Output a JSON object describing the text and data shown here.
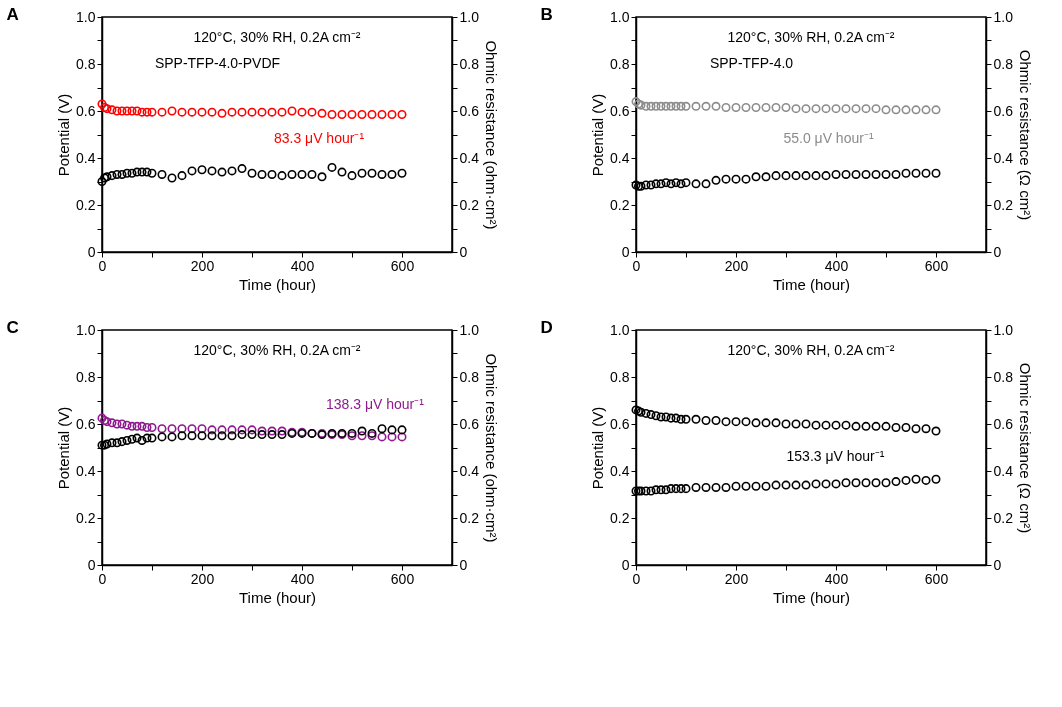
{
  "chart_data": [
    {
      "type": "scatter",
      "title": "A",
      "xlabel": "Time (hour)",
      "ylabel": "Potential (V)",
      "y2label": "Ohmic resistance (ohm·cm²)",
      "annotations": [
        "120°C, 30% RH, 0.2A cm⁻²",
        "SPP-TFP-4.0-PVDF",
        "83.3 μV hour⁻¹"
      ],
      "x": [
        0,
        5,
        10,
        20,
        30,
        40,
        50,
        60,
        70,
        80,
        90,
        100,
        120,
        140,
        160,
        180,
        200,
        220,
        240,
        260,
        280,
        300,
        320,
        340,
        360,
        380,
        400,
        420,
        440,
        460,
        480,
        500,
        520,
        540,
        560,
        580,
        600
      ],
      "series": [
        {
          "color": "#ff0000",
          "values": [
            0.63,
            0.615,
            0.61,
            0.605,
            0.6,
            0.6,
            0.6,
            0.6,
            0.6,
            0.595,
            0.595,
            0.595,
            0.595,
            0.6,
            0.595,
            0.595,
            0.595,
            0.595,
            0.59,
            0.595,
            0.595,
            0.595,
            0.595,
            0.595,
            0.595,
            0.6,
            0.595,
            0.595,
            0.59,
            0.585,
            0.585,
            0.585,
            0.585,
            0.585,
            0.585,
            0.585,
            0.585
          ]
        },
        {
          "color": "#000000",
          "axis": "y2",
          "values": [
            0.3,
            0.315,
            0.32,
            0.325,
            0.33,
            0.33,
            0.335,
            0.335,
            0.34,
            0.34,
            0.34,
            0.335,
            0.33,
            0.315,
            0.325,
            0.345,
            0.35,
            0.345,
            0.34,
            0.345,
            0.355,
            0.335,
            0.33,
            0.33,
            0.325,
            0.33,
            0.33,
            0.33,
            0.32,
            0.36,
            0.34,
            0.325,
            0.335,
            0.335,
            0.33,
            0.33,
            0.335
          ]
        }
      ],
      "xlim": [
        0,
        700
      ],
      "xticks": [
        0,
        {
          "value": 100,
          "label": null
        },
        200,
        {
          "value": 300,
          "label": null
        },
        400,
        {
          "value": 500,
          "label": null
        },
        600
      ],
      "ylim": [
        0,
        1
      ],
      "yticks": [
        0,
        {
          "value": 0.1,
          "label": null
        },
        0.2,
        {
          "value": 0.3,
          "label": null
        },
        0.4,
        {
          "value": 0.5,
          "label": null
        },
        0.6,
        {
          "value": 0.7,
          "label": null
        },
        0.8,
        {
          "value": 0.9,
          "label": null
        },
        {
          "value": 1,
          "label": "1.0"
        }
      ],
      "y2lim": [
        0,
        1
      ],
      "y2ticks": [
        0,
        {
          "value": 0.1,
          "label": null
        },
        0.2,
        {
          "value": 0.3,
          "label": null
        },
        0.4,
        {
          "value": 0.5,
          "label": null
        },
        0.6,
        {
          "value": 0.7,
          "label": null
        },
        0.8,
        {
          "value": 0.9,
          "label": null
        },
        {
          "value": 1,
          "label": "1.0"
        }
      ],
      "marker": "circle",
      "grid": false
    },
    {
      "type": "scatter",
      "title": "B",
      "xlabel": "Time (hour)",
      "ylabel": "Potential (V)",
      "y2label": "Ohmic resistance (Ω cm²)",
      "annotations": [
        "120°C, 30% RH, 0.2A cm⁻²",
        "SPP-TFP-4.0",
        "55.0 μV hour⁻¹"
      ],
      "x": [
        0,
        5,
        10,
        20,
        30,
        40,
        50,
        60,
        70,
        80,
        90,
        100,
        120,
        140,
        160,
        180,
        200,
        220,
        240,
        260,
        280,
        300,
        320,
        340,
        360,
        380,
        400,
        420,
        440,
        460,
        480,
        500,
        520,
        540,
        560,
        580,
        600
      ],
      "series": [
        {
          "color": "#8c8c8c",
          "values": [
            0.64,
            0.63,
            0.625,
            0.62,
            0.62,
            0.62,
            0.62,
            0.62,
            0.62,
            0.62,
            0.62,
            0.62,
            0.62,
            0.62,
            0.62,
            0.615,
            0.615,
            0.615,
            0.615,
            0.615,
            0.615,
            0.615,
            0.61,
            0.61,
            0.61,
            0.61,
            0.61,
            0.61,
            0.61,
            0.61,
            0.61,
            0.605,
            0.605,
            0.605,
            0.605,
            0.605,
            0.605
          ]
        },
        {
          "color": "#000000",
          "axis": "y2",
          "values": [
            0.285,
            0.28,
            0.28,
            0.285,
            0.285,
            0.29,
            0.29,
            0.295,
            0.29,
            0.295,
            0.29,
            0.295,
            0.29,
            0.29,
            0.305,
            0.31,
            0.31,
            0.31,
            0.32,
            0.32,
            0.325,
            0.325,
            0.325,
            0.325,
            0.325,
            0.325,
            0.33,
            0.33,
            0.33,
            0.33,
            0.33,
            0.33,
            0.33,
            0.335,
            0.335,
            0.335,
            0.335
          ]
        }
      ],
      "xlim": [
        0,
        700
      ],
      "xticks": [
        0,
        {
          "value": 100,
          "label": null
        },
        200,
        {
          "value": 300,
          "label": null
        },
        400,
        {
          "value": 500,
          "label": null
        },
        600
      ],
      "ylim": [
        0,
        1
      ],
      "yticks": [
        0,
        {
          "value": 0.1,
          "label": null
        },
        0.2,
        {
          "value": 0.3,
          "label": null
        },
        0.4,
        {
          "value": 0.5,
          "label": null
        },
        0.6,
        {
          "value": 0.7,
          "label": null
        },
        0.8,
        {
          "value": 0.9,
          "label": null
        },
        {
          "value": 1,
          "label": "1.0"
        }
      ],
      "y2lim": [
        0,
        1
      ],
      "y2ticks": [
        0,
        {
          "value": 0.1,
          "label": null
        },
        0.2,
        {
          "value": 0.3,
          "label": null
        },
        0.4,
        {
          "value": 0.5,
          "label": null
        },
        0.6,
        {
          "value": 0.7,
          "label": null
        },
        0.8,
        {
          "value": 0.9,
          "label": null
        },
        {
          "value": 1,
          "label": "1.0"
        }
      ],
      "marker": "circle",
      "grid": false
    },
    {
      "type": "scatter",
      "title": "C",
      "xlabel": "Time (hour)",
      "ylabel": "Potential (V)",
      "y2label": "Ohmic resistance (ohm·cm²)",
      "annotations": [
        "120°C, 30% RH, 0.2A cm⁻²",
        "138.3 μV hour⁻¹"
      ],
      "x": [
        0,
        5,
        10,
        20,
        30,
        40,
        50,
        60,
        70,
        80,
        90,
        100,
        120,
        140,
        160,
        180,
        200,
        220,
        240,
        260,
        280,
        300,
        320,
        340,
        360,
        380,
        400,
        420,
        440,
        460,
        480,
        500,
        520,
        540,
        560,
        580,
        600
      ],
      "series": [
        {
          "color": "#8e1a8e",
          "values": [
            0.625,
            0.615,
            0.61,
            0.605,
            0.6,
            0.6,
            0.595,
            0.59,
            0.59,
            0.59,
            0.585,
            0.585,
            0.58,
            0.58,
            0.58,
            0.58,
            0.58,
            0.575,
            0.575,
            0.575,
            0.575,
            0.575,
            0.57,
            0.57,
            0.57,
            0.565,
            0.565,
            0.56,
            0.56,
            0.555,
            0.555,
            0.55,
            0.55,
            0.55,
            0.545,
            0.545,
            0.545
          ]
        },
        {
          "color": "#000000",
          "axis": "y2",
          "values": [
            0.51,
            0.51,
            0.515,
            0.52,
            0.52,
            0.525,
            0.53,
            0.535,
            0.54,
            0.53,
            0.54,
            0.54,
            0.545,
            0.545,
            0.55,
            0.55,
            0.55,
            0.55,
            0.55,
            0.55,
            0.555,
            0.555,
            0.555,
            0.555,
            0.555,
            0.56,
            0.56,
            0.56,
            0.555,
            0.56,
            0.56,
            0.56,
            0.57,
            0.56,
            0.58,
            0.575,
            0.575
          ]
        }
      ],
      "xlim": [
        0,
        700
      ],
      "xticks": [
        0,
        {
          "value": 100,
          "label": null
        },
        200,
        {
          "value": 300,
          "label": null
        },
        400,
        {
          "value": 500,
          "label": null
        },
        600
      ],
      "ylim": [
        0,
        1
      ],
      "yticks": [
        0,
        {
          "value": 0.1,
          "label": null
        },
        0.2,
        {
          "value": 0.3,
          "label": null
        },
        0.4,
        {
          "value": 0.5,
          "label": null
        },
        0.6,
        {
          "value": 0.7,
          "label": null
        },
        0.8,
        {
          "value": 0.9,
          "label": null
        },
        {
          "value": 1,
          "label": "1.0"
        }
      ],
      "y2lim": [
        0,
        1
      ],
      "y2ticks": [
        0,
        {
          "value": 0.1,
          "label": null
        },
        0.2,
        {
          "value": 0.3,
          "label": null
        },
        0.4,
        {
          "value": 0.5,
          "label": null
        },
        0.6,
        {
          "value": 0.7,
          "label": null
        },
        0.8,
        {
          "value": 0.9,
          "label": null
        },
        {
          "value": 1,
          "label": "1.0"
        }
      ],
      "marker": "circle",
      "grid": false
    },
    {
      "type": "scatter",
      "title": "D",
      "xlabel": "Time (hour)",
      "ylabel": "Potential (V)",
      "y2label": "Ohmic resistance (Ω cm²)",
      "annotations": [
        "120°C, 30% RH, 0.2A cm⁻²",
        "153.3 μV hour⁻¹"
      ],
      "x": [
        0,
        5,
        10,
        20,
        30,
        40,
        50,
        60,
        70,
        80,
        90,
        100,
        120,
        140,
        160,
        180,
        200,
        220,
        240,
        260,
        280,
        300,
        320,
        340,
        360,
        380,
        400,
        420,
        440,
        460,
        480,
        500,
        520,
        540,
        560,
        580,
        600
      ],
      "series": [
        {
          "color": "#000000",
          "values": [
            0.66,
            0.655,
            0.65,
            0.645,
            0.64,
            0.635,
            0.63,
            0.63,
            0.625,
            0.625,
            0.62,
            0.62,
            0.62,
            0.615,
            0.615,
            0.61,
            0.61,
            0.61,
            0.605,
            0.605,
            0.605,
            0.6,
            0.6,
            0.6,
            0.595,
            0.595,
            0.595,
            0.595,
            0.59,
            0.59,
            0.59,
            0.59,
            0.585,
            0.585,
            0.58,
            0.58,
            0.57
          ]
        },
        {
          "color": "#000000",
          "axis": "y2",
          "values": [
            0.315,
            0.315,
            0.315,
            0.315,
            0.315,
            0.32,
            0.32,
            0.32,
            0.325,
            0.325,
            0.325,
            0.325,
            0.33,
            0.33,
            0.33,
            0.33,
            0.335,
            0.335,
            0.335,
            0.335,
            0.34,
            0.34,
            0.34,
            0.34,
            0.345,
            0.345,
            0.345,
            0.35,
            0.35,
            0.35,
            0.35,
            0.35,
            0.355,
            0.36,
            0.365,
            0.36,
            0.365
          ]
        }
      ],
      "xlim": [
        0,
        700
      ],
      "xticks": [
        0,
        {
          "value": 100,
          "label": null
        },
        200,
        {
          "value": 300,
          "label": null
        },
        400,
        {
          "value": 500,
          "label": null
        },
        600
      ],
      "ylim": [
        0,
        1
      ],
      "yticks": [
        0,
        {
          "value": 0.1,
          "label": null
        },
        0.2,
        {
          "value": 0.3,
          "label": null
        },
        0.4,
        {
          "value": 0.5,
          "label": null
        },
        0.6,
        {
          "value": 0.7,
          "label": null
        },
        0.8,
        {
          "value": 0.9,
          "label": null
        },
        {
          "value": 1,
          "label": "1.0"
        }
      ],
      "y2lim": [
        0,
        1
      ],
      "y2ticks": [
        0,
        {
          "value": 0.1,
          "label": null
        },
        0.2,
        {
          "value": 0.3,
          "label": null
        },
        0.4,
        {
          "value": 0.5,
          "label": null
        },
        0.6,
        {
          "value": 0.7,
          "label": null
        },
        0.8,
        {
          "value": 0.9,
          "label": null
        },
        {
          "value": 1,
          "label": "1.0"
        }
      ],
      "marker": "circle",
      "grid": false
    }
  ]
}
